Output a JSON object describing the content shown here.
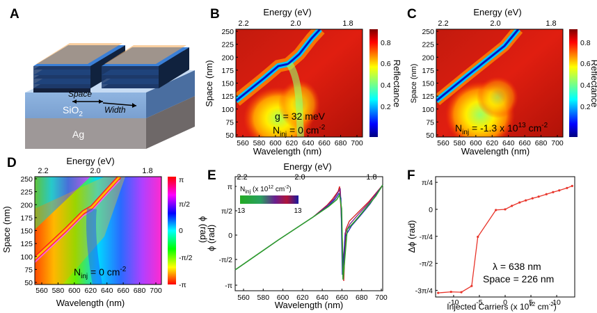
{
  "panels": {
    "A": {
      "letter": "A",
      "labels": {
        "space": "Space",
        "width": "Width",
        "oxide": "SiO",
        "oxide_sub": "2",
        "metal": "Ag"
      }
    },
    "B": {
      "letter": "B",
      "top_axis_label": "Energy (eV)",
      "top_ticks": [
        "2.2",
        "2.0",
        "1.8"
      ],
      "x_label": "Wavelength (nm)",
      "y_label": "Space (nm)",
      "x_ticks": [
        "560",
        "580",
        "600",
        "620",
        "640",
        "660",
        "680",
        "700"
      ],
      "y_ticks": [
        "250",
        "225",
        "200",
        "175",
        "150",
        "125",
        "100",
        "75",
        "50"
      ],
      "colorbar_label": "Reflectance",
      "colorbar_ticks": [
        "0.8",
        "0.6",
        "0.4",
        "0.2"
      ],
      "annotation_1": "g = 32 meV",
      "annotation_2_main": "N",
      "annotation_2_sub": "inj",
      "annotation_2_tail": " = 0 cm",
      "annotation_2_sup": "-2"
    },
    "C": {
      "letter": "C",
      "top_axis_label": "Energy (eV)",
      "top_ticks": [
        "2.2",
        "2.0",
        "1.8"
      ],
      "x_label": "Wavelength (nm)",
      "y_label": "Space (nm)",
      "x_ticks": [
        "560",
        "580",
        "600",
        "620",
        "640",
        "660",
        "680",
        "700"
      ],
      "y_ticks": [
        "250",
        "225",
        "200",
        "175",
        "150",
        "125",
        "100",
        "75",
        "50"
      ],
      "colorbar_label": "Reflectance",
      "colorbar_ticks": [
        "0.8",
        "0.6",
        "0.4",
        "0.2"
      ],
      "annotation_main": "N",
      "annotation_sub": "inj",
      "annotation_mid": " = -1.3 x 10",
      "annotation_sup": "13",
      "annotation_tail": " cm",
      "annotation_sup2": "-2"
    },
    "D": {
      "letter": "D",
      "top_axis_label": "Energy (eV)",
      "top_ticks": [
        "2.2",
        "2.0",
        "1.8"
      ],
      "x_label": "Wavelength (nm)",
      "y_label": "Space (nm)",
      "x_ticks": [
        "560",
        "580",
        "600",
        "620",
        "640",
        "660",
        "680",
        "700"
      ],
      "y_ticks": [
        "250",
        "225",
        "200",
        "175",
        "150",
        "125",
        "100",
        "75",
        "50"
      ],
      "colorbar_label": "ϕ (rad)",
      "colorbar_ticks": [
        "π",
        "π/2",
        "0",
        "-π/2",
        "-π"
      ],
      "annotation_main": "N",
      "annotation_sub": "inj",
      "annotation_tail": " = 0 cm",
      "annotation_sup": "-2"
    },
    "E": {
      "letter": "E",
      "top_axis_label": "Energy (eV)",
      "top_ticks": [
        "2.2",
        "2.0",
        "1.8"
      ],
      "x_label": "Wavelength (nm)",
      "y_label": "ϕ (rad)",
      "x_ticks": [
        "560",
        "580",
        "600",
        "620",
        "640",
        "660",
        "680",
        "700"
      ],
      "y_ticks": [
        "π",
        "π/2",
        "0",
        "-π/2",
        "-π"
      ],
      "legend_main": "N",
      "legend_sub": "inj",
      "legend_mid": " (x 10",
      "legend_sup": "12",
      "legend_tail": " cm",
      "legend_sup2": "-2",
      "legend_close": ")",
      "legend_min": "-13",
      "legend_max": "13"
    },
    "F": {
      "letter": "F",
      "x_label_main": "Injected Carriers (x 10",
      "x_label_sup": "12",
      "x_label_tail": " cm",
      "x_label_sup2": "-2",
      "x_label_close": ")",
      "y_label": "Δϕ (rad)",
      "x_ticks": [
        "-10",
        "-5",
        "0",
        "5",
        "10"
      ],
      "y_ticks": [
        "π/4",
        "0",
        "-π/4",
        "-π/2",
        "-3π/4"
      ],
      "annotation_1": "λ = 638 nm",
      "annotation_2": "Space = 226 nm"
    }
  },
  "colors": {
    "curve": "#e8342a",
    "line_green": "#2ca02c"
  },
  "chart_data": [
    {
      "type": "line",
      "panel": "F",
      "x": [
        -13,
        -10.5,
        -8.5,
        -6.5,
        -5.3,
        -1.8,
        0,
        1.3,
        2.8,
        4,
        5.3,
        6.5,
        8,
        9.3,
        10.5,
        12,
        13
      ],
      "y": [
        -2.43,
        -2.4,
        -2.41,
        -2.23,
        -0.8,
        -0.02,
        0.0,
        0.1,
        0.2,
        0.26,
        0.32,
        0.37,
        0.44,
        0.5,
        0.55,
        0.62,
        0.68
      ],
      "xlabel": "Injected Carriers (x 10^12 cm^-2)",
      "ylabel": "Δϕ (rad)",
      "xlim": [
        -13.5,
        13.5
      ],
      "ylim": [
        -2.55,
        0.95
      ]
    }
  ]
}
